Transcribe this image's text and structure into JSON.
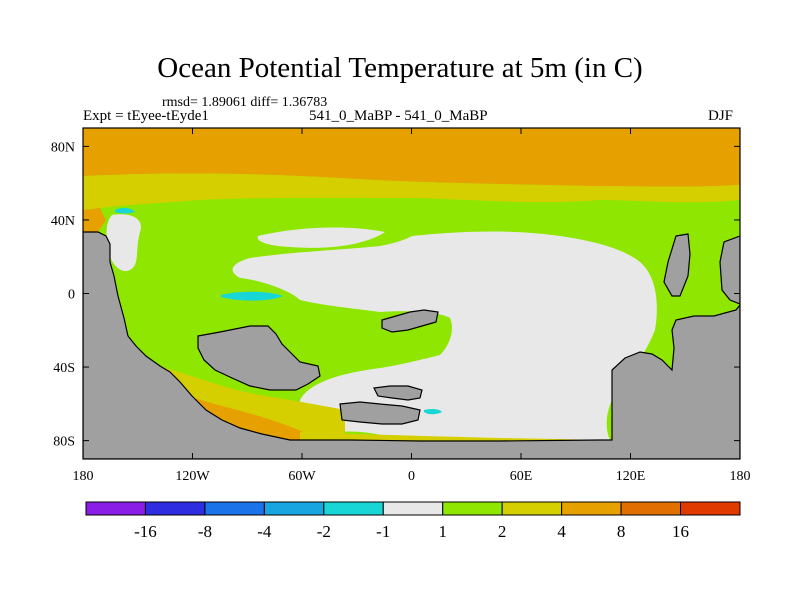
{
  "header": {
    "title": "Ocean Potential Temperature at 5m (in C)",
    "stats": "rmsd= 1.89061 diff= 1.36783",
    "experiment": "Expt = tEyee-tEyde1",
    "run_label": "541_0_MaBP - 541_0_MaBP",
    "season": "DJF"
  },
  "map": {
    "lon_ticks": [
      {
        "lon": -180,
        "label": "180"
      },
      {
        "lon": -120,
        "label": "120W"
      },
      {
        "lon": -60,
        "label": "60W"
      },
      {
        "lon": 0,
        "label": "0"
      },
      {
        "lon": 60,
        "label": "60E"
      },
      {
        "lon": 120,
        "label": "120E"
      },
      {
        "lon": 180,
        "label": "180"
      }
    ],
    "lat_ticks": [
      {
        "lat": 80,
        "label": "80N"
      },
      {
        "lat": 40,
        "label": "40N"
      },
      {
        "lat": 0,
        "label": "0"
      },
      {
        "lat": -40,
        "label": "40S"
      },
      {
        "lat": -80,
        "label": "80S"
      }
    ],
    "land_color": "#a0a0a0"
  },
  "colorbar": {
    "colors": [
      "#8a1ee6",
      "#2e2ee0",
      "#1a73e8",
      "#19a6e0",
      "#19d6d6",
      "#e8e8e8",
      "#8fe600",
      "#d6cf00",
      "#e6a000",
      "#e06e00",
      "#e03a00"
    ],
    "labels": [
      "-16",
      "-8",
      "-4",
      "-2",
      "-1",
      "1",
      "2",
      "4",
      "8",
      "16"
    ]
  }
}
